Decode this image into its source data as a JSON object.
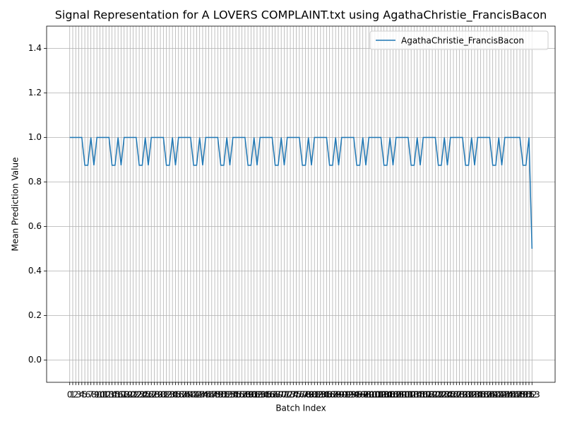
{
  "chart_data": {
    "type": "line",
    "title": "Signal Representation for A LOVERS COMPLAINT.txt using AgathaChristie_FrancisBacon",
    "xlabel": "Batch Index",
    "ylabel": "Mean Prediction Value",
    "x": [
      0,
      1,
      2,
      3,
      4,
      5,
      6,
      7,
      8,
      9,
      10,
      11,
      12,
      13,
      14,
      15,
      16,
      17,
      18,
      19,
      20,
      21,
      22,
      23,
      24,
      25,
      26,
      27,
      28,
      29,
      30,
      31,
      32,
      33,
      34,
      35,
      36,
      37,
      38,
      39,
      40,
      41,
      42,
      43,
      44,
      45,
      46,
      47,
      48,
      49,
      50,
      51,
      52,
      53,
      54,
      55,
      56,
      57,
      58,
      59,
      60,
      61,
      62,
      63,
      64,
      65,
      66,
      67,
      68,
      69,
      70,
      71,
      72,
      73,
      74,
      75,
      76,
      77,
      78,
      79,
      80,
      81,
      82,
      83,
      84,
      85,
      86,
      87,
      88,
      89,
      90,
      91,
      92,
      93,
      94,
      95,
      96,
      97,
      98,
      99,
      100,
      101,
      102,
      103,
      104,
      105,
      106,
      107,
      108,
      109,
      110,
      111,
      112,
      113,
      114,
      115,
      116,
      117,
      118,
      119,
      120,
      121,
      122,
      123,
      124,
      125,
      126,
      127,
      128,
      129,
      130,
      131,
      132,
      133,
      134,
      135,
      136,
      137,
      138,
      139,
      140,
      141,
      142,
      143,
      144,
      145,
      146,
      147,
      148,
      149,
      150,
      151,
      152,
      153
    ],
    "series": [
      {
        "name": "AgathaChristie_FrancisBacon",
        "color": "#1f77b4",
        "values": [
          1,
          1,
          1,
          1,
          1,
          0.875,
          0.875,
          1,
          0.875,
          1,
          1,
          1,
          1,
          1,
          0.875,
          0.875,
          1,
          0.875,
          1,
          1,
          1,
          1,
          1,
          0.875,
          0.875,
          1,
          0.875,
          1,
          1,
          1,
          1,
          1,
          0.875,
          0.875,
          1,
          0.875,
          1,
          1,
          1,
          1,
          1,
          0.875,
          0.875,
          1,
          0.875,
          1,
          1,
          1,
          1,
          1,
          0.875,
          0.875,
          1,
          0.875,
          1,
          1,
          1,
          1,
          1,
          0.875,
          0.875,
          1,
          0.875,
          1,
          1,
          1,
          1,
          1,
          0.875,
          0.875,
          1,
          0.875,
          1,
          1,
          1,
          1,
          1,
          0.875,
          0.875,
          1,
          0.875,
          1,
          1,
          1,
          1,
          1,
          0.875,
          0.875,
          1,
          0.875,
          1,
          1,
          1,
          1,
          1,
          0.875,
          0.875,
          1,
          0.875,
          1,
          1,
          1,
          1,
          1,
          0.875,
          0.875,
          1,
          0.875,
          1,
          1,
          1,
          1,
          1,
          0.875,
          0.875,
          1,
          0.875,
          1,
          1,
          1,
          1,
          1,
          0.875,
          0.875,
          1,
          0.875,
          1,
          1,
          1,
          1,
          1,
          0.875,
          0.875,
          1,
          0.875,
          1,
          1,
          1,
          1,
          1,
          0.875,
          0.875,
          1,
          0.875,
          1,
          1,
          1,
          1,
          1,
          1,
          0.875,
          0.875,
          1,
          0.5
        ]
      }
    ],
    "xlim": [
      -7.65,
      160.65
    ],
    "xticks": [
      0,
      1,
      2,
      3,
      4,
      5,
      6,
      7,
      8,
      9,
      10,
      11,
      12,
      13,
      14,
      15,
      16,
      17,
      18,
      19,
      20,
      21,
      22,
      23,
      24,
      25,
      26,
      27,
      28,
      29,
      30,
      31,
      32,
      33,
      34,
      35,
      36,
      37,
      38,
      39,
      40,
      41,
      42,
      43,
      44,
      45,
      46,
      47,
      48,
      49,
      50,
      51,
      52,
      53,
      54,
      55,
      56,
      57,
      58,
      59,
      60,
      61,
      62,
      63,
      64,
      65,
      66,
      67,
      68,
      69,
      70,
      71,
      72,
      73,
      74,
      75,
      76,
      77,
      78,
      79,
      80,
      81,
      82,
      83,
      84,
      85,
      86,
      87,
      88,
      89,
      90,
      91,
      92,
      93,
      94,
      95,
      96,
      97,
      98,
      99,
      100,
      101,
      102,
      103,
      104,
      105,
      106,
      107,
      108,
      109,
      110,
      111,
      112,
      113,
      114,
      115,
      116,
      117,
      118,
      119,
      120,
      121,
      122,
      123,
      124,
      125,
      126,
      127,
      128,
      129,
      130,
      131,
      132,
      133,
      134,
      135,
      136,
      137,
      138,
      139,
      140,
      141,
      142,
      143,
      144,
      145,
      146,
      147,
      148,
      149,
      150,
      151,
      152,
      153
    ],
    "ylim": [
      -0.1,
      1.5
    ],
    "yticks": [
      {
        "value": 0,
        "label": "0.0"
      },
      0.2,
      0.4,
      0.6,
      0.8,
      {
        "value": 1,
        "label": "1.0"
      },
      1.2,
      1.4
    ],
    "grid": true,
    "legend": "upper right"
  }
}
